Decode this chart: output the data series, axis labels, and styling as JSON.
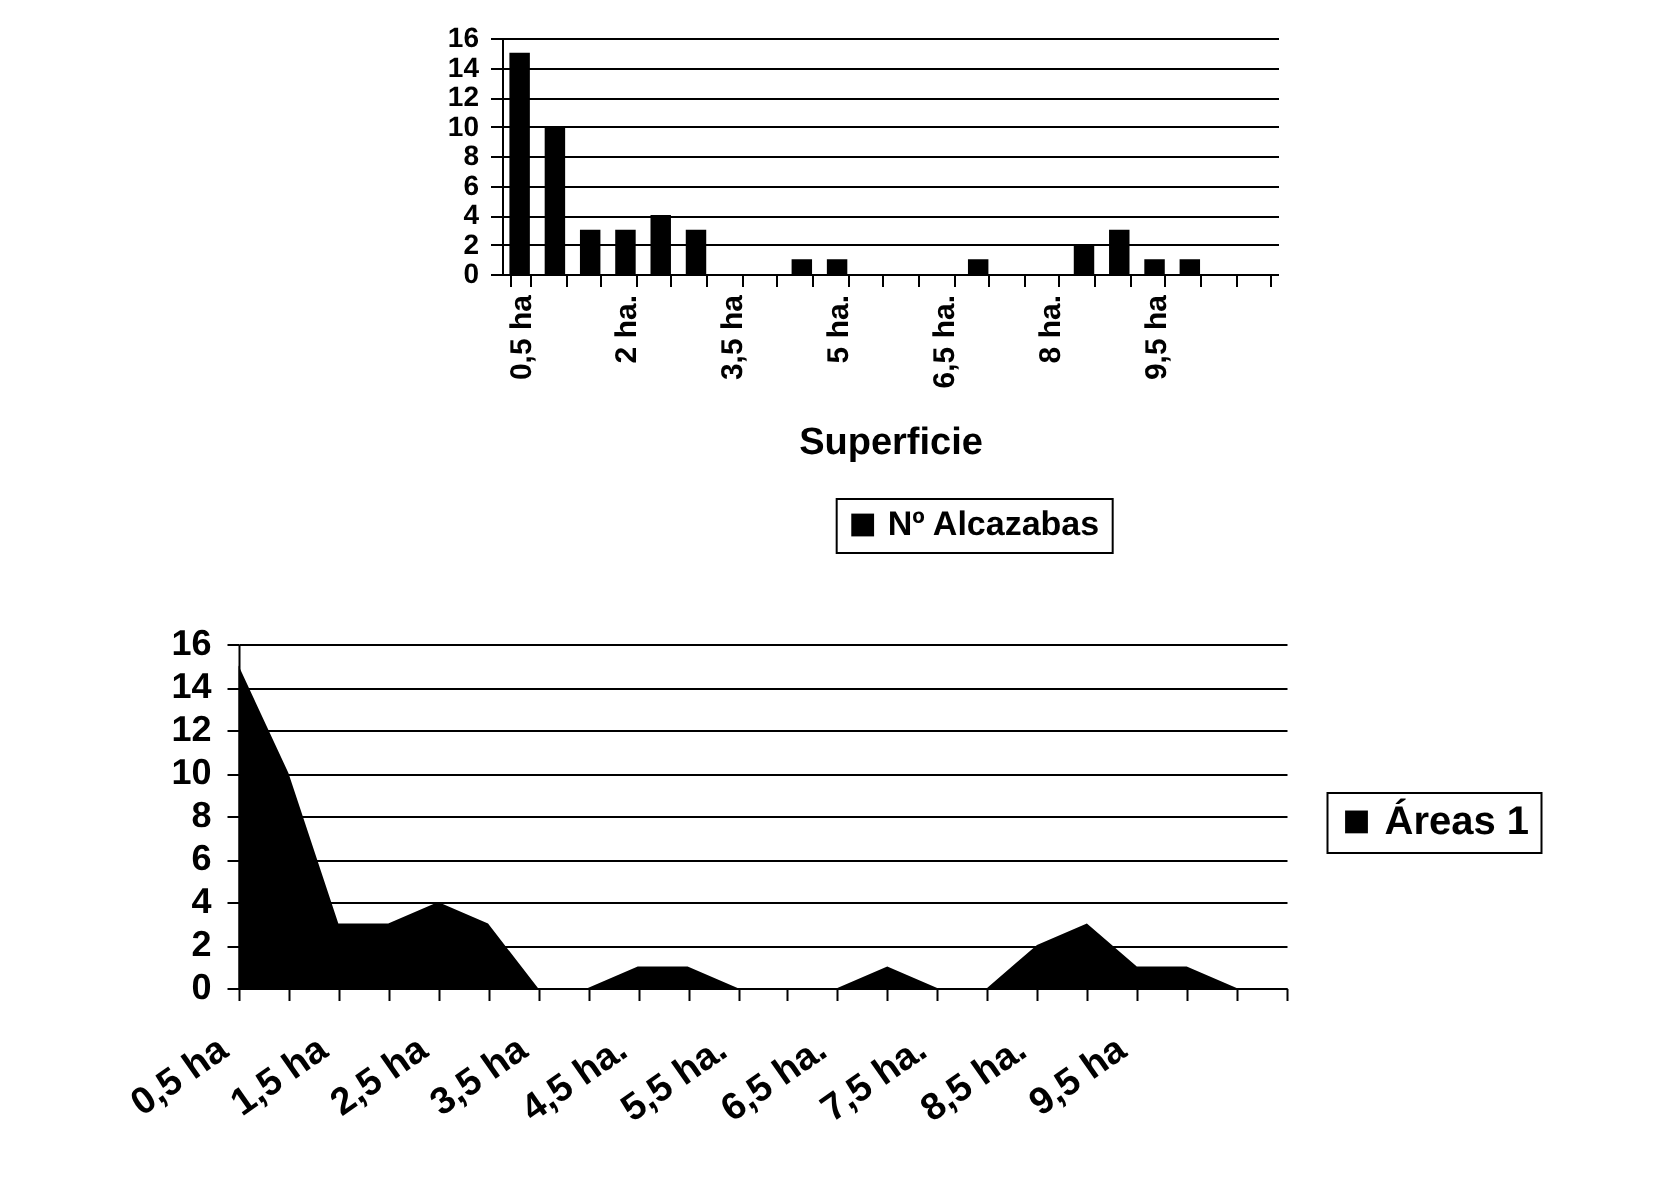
{
  "chart_data": [
    {
      "type": "bar",
      "xlabel": "Superficie",
      "categories": [
        "0,5 ha",
        null,
        null,
        "2 ha.",
        null,
        null,
        "3,5 ha",
        null,
        null,
        "5 ha.",
        null,
        null,
        "6,5 ha.",
        null,
        null,
        "8 ha.",
        null,
        null,
        "9,5 ha",
        null,
        null,
        null
      ],
      "series": [
        {
          "name": "Nº Alcazabas",
          "color": "#000000",
          "values": [
            15,
            10,
            3,
            3,
            4,
            3,
            0,
            0,
            1,
            1,
            0,
            0,
            0,
            1,
            0,
            0,
            2,
            3,
            1,
            1,
            0,
            0
          ]
        }
      ],
      "ylim": [
        0,
        16
      ],
      "yticks": [
        0,
        2,
        4,
        6,
        8,
        10,
        12,
        14,
        16
      ],
      "grid": "y",
      "legend": "bottom"
    },
    {
      "type": "area",
      "categories": [
        "0,5 ha",
        null,
        "1,5 ha",
        null,
        "2,5 ha",
        null,
        "3,5 ha",
        null,
        "4,5 ha.",
        null,
        "5,5 ha.",
        null,
        "6,5 ha.",
        null,
        "7,5 ha.",
        null,
        "8,5 ha.",
        null,
        "9,5 ha",
        null,
        null,
        null
      ],
      "series": [
        {
          "name": "Áreas 1",
          "color": "#000000",
          "values": [
            15,
            10,
            3,
            3,
            4,
            3,
            0,
            0,
            1,
            1,
            0,
            0,
            0,
            1,
            0,
            0,
            2,
            3,
            1,
            1,
            0,
            0
          ]
        }
      ],
      "ylim": [
        0,
        16
      ],
      "yticks": [
        0,
        2,
        4,
        6,
        8,
        10,
        12,
        14,
        16
      ],
      "grid": "y",
      "legend": "right"
    }
  ]
}
